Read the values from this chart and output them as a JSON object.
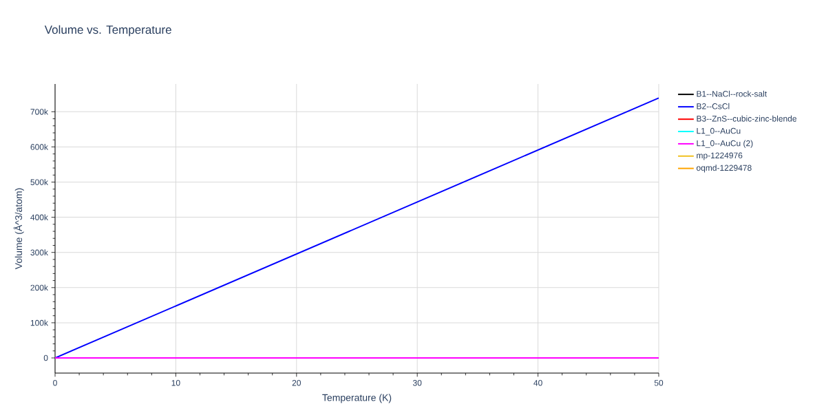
{
  "chart_data": {
    "type": "line",
    "title": "Volume vs. Temperature",
    "xlabel": "Temperature (K)",
    "ylabel": "Volume (Å^3/atom)",
    "x": [
      0,
      50
    ],
    "series": [
      {
        "name": "B1--NaCl--rock-salt",
        "color": "#000000",
        "values": [
          null,
          null
        ]
      },
      {
        "name": "B2--CsCl",
        "color": "#0000ff",
        "values": [
          0,
          739000
        ]
      },
      {
        "name": "B3--ZnS--cubic-zinc-blende",
        "color": "#ff0000",
        "values": [
          null,
          null
        ]
      },
      {
        "name": "L1_0--AuCu",
        "color": "#00ffff",
        "values": [
          null,
          null
        ]
      },
      {
        "name": "L1_0--AuCu (2)",
        "color": "#ff00ff",
        "values": [
          0,
          0
        ]
      },
      {
        "name": "mp-1224976",
        "color": "#f0c020",
        "values": [
          null,
          null
        ]
      },
      {
        "name": "oqmd-1229478",
        "color": "#ffa500",
        "values": [
          null,
          null
        ]
      }
    ],
    "xlim": [
      0,
      50
    ],
    "ylim": [
      -43000,
      779000
    ],
    "xticks": [
      0,
      10,
      20,
      30,
      40,
      50
    ],
    "yticks": [
      0,
      {
        "value": 100000,
        "label": "100k"
      },
      {
        "value": 200000,
        "label": "200k"
      },
      {
        "value": 300000,
        "label": "300k"
      },
      {
        "value": 400000,
        "label": "400k"
      },
      {
        "value": 500000,
        "label": "500k"
      },
      {
        "value": 600000,
        "label": "600k"
      },
      {
        "value": 700000,
        "label": "700k"
      }
    ],
    "grid": true,
    "legend": "top right",
    "marker": "none",
    "line_style": "solid"
  }
}
